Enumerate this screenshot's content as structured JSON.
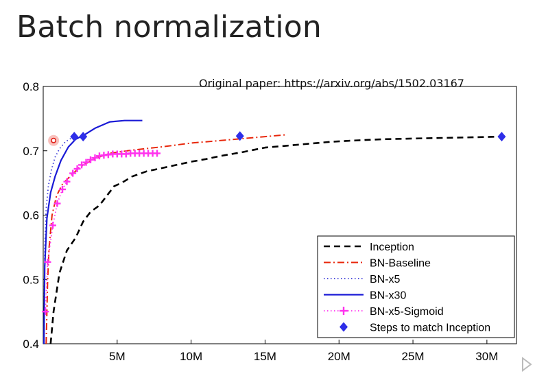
{
  "slide": {
    "title": "Batch normalization",
    "note": "Original paper: https://arxiv.org/abs/1502.03167"
  },
  "chart_data": {
    "type": "line",
    "title": "",
    "xlabel": "",
    "ylabel": "",
    "xlim": [
      0,
      32000000
    ],
    "ylim": [
      0.4,
      0.8
    ],
    "grid": false,
    "legend_position": "bottom-right",
    "x_ticks": [
      {
        "value": 5000000,
        "label": "5M"
      },
      {
        "value": 10000000,
        "label": "10M"
      },
      {
        "value": 15000000,
        "label": "15M"
      },
      {
        "value": 20000000,
        "label": "20M"
      },
      {
        "value": 25000000,
        "label": "25M"
      },
      {
        "value": 30000000,
        "label": "30M"
      }
    ],
    "y_ticks": [
      {
        "value": 0.4,
        "label": "0.4"
      },
      {
        "value": 0.5,
        "label": "0.5"
      },
      {
        "value": 0.6,
        "label": "0.6"
      },
      {
        "value": 0.7,
        "label": "0.7"
      },
      {
        "value": 0.8,
        "label": "0.8"
      }
    ],
    "series": [
      {
        "name": "Inception",
        "color": "#000000",
        "style": "dashed",
        "marker": "none",
        "points": [
          [
            500000,
            0.4
          ],
          [
            700000,
            0.45
          ],
          [
            1100000,
            0.51
          ],
          [
            1600000,
            0.545
          ],
          [
            2200000,
            0.565
          ],
          [
            2700000,
            0.59
          ],
          [
            3200000,
            0.605
          ],
          [
            3800000,
            0.615
          ],
          [
            4300000,
            0.63
          ],
          [
            4800000,
            0.645
          ],
          [
            5300000,
            0.65
          ],
          [
            6000000,
            0.66
          ],
          [
            7000000,
            0.668
          ],
          [
            8000000,
            0.673
          ],
          [
            9000000,
            0.678
          ],
          [
            10000000,
            0.683
          ],
          [
            11000000,
            0.687
          ],
          [
            12000000,
            0.692
          ],
          [
            13500000,
            0.698
          ],
          [
            15000000,
            0.705
          ],
          [
            16500000,
            0.708
          ],
          [
            18000000,
            0.711
          ],
          [
            19500000,
            0.714
          ],
          [
            21000000,
            0.716
          ],
          [
            23000000,
            0.718
          ],
          [
            25000000,
            0.719
          ],
          [
            27000000,
            0.72
          ],
          [
            29000000,
            0.721
          ],
          [
            31000000,
            0.722
          ]
        ]
      },
      {
        "name": "BN-Baseline",
        "color": "#e8260a",
        "style": "dashdot",
        "marker": "none",
        "points": [
          [
            200000,
            0.4
          ],
          [
            300000,
            0.5
          ],
          [
            400000,
            0.55
          ],
          [
            600000,
            0.6
          ],
          [
            900000,
            0.63
          ],
          [
            1300000,
            0.648
          ],
          [
            1800000,
            0.66
          ],
          [
            2500000,
            0.675
          ],
          [
            3500000,
            0.688
          ],
          [
            4500000,
            0.696
          ],
          [
            6000000,
            0.701
          ],
          [
            8000000,
            0.706
          ],
          [
            10000000,
            0.712
          ],
          [
            12000000,
            0.716
          ],
          [
            14000000,
            0.72
          ],
          [
            16500000,
            0.725
          ]
        ]
      },
      {
        "name": "BN-x5",
        "color": "#3a3ad8",
        "style": "dotted",
        "marker": "none",
        "points": [
          [
            60000,
            0.43
          ],
          [
            100000,
            0.55
          ],
          [
            200000,
            0.61
          ],
          [
            350000,
            0.645
          ],
          [
            550000,
            0.67
          ],
          [
            800000,
            0.69
          ],
          [
            1100000,
            0.703
          ],
          [
            1500000,
            0.714
          ],
          [
            2000000,
            0.721
          ]
        ]
      },
      {
        "name": "BN-x30",
        "color": "#1a1ad6",
        "style": "solid",
        "marker": "none",
        "points": [
          [
            50000,
            0.4
          ],
          [
            100000,
            0.52
          ],
          [
            250000,
            0.595
          ],
          [
            500000,
            0.635
          ],
          [
            800000,
            0.66
          ],
          [
            1200000,
            0.685
          ],
          [
            1700000,
            0.706
          ],
          [
            2200000,
            0.718
          ],
          [
            2800000,
            0.725
          ],
          [
            3500000,
            0.735
          ],
          [
            4500000,
            0.745
          ],
          [
            5500000,
            0.747
          ],
          [
            6700000,
            0.747
          ]
        ]
      },
      {
        "name": "BN-x5-Sigmoid",
        "color": "#ff33ee",
        "style": "dotted",
        "marker": "plus",
        "points": [
          [
            150000,
            0.45
          ],
          [
            300000,
            0.527
          ],
          [
            650000,
            0.584
          ],
          [
            950000,
            0.618
          ],
          [
            1300000,
            0.64
          ],
          [
            1600000,
            0.652
          ],
          [
            2000000,
            0.665
          ],
          [
            2300000,
            0.672
          ],
          [
            2600000,
            0.678
          ],
          [
            2900000,
            0.682
          ],
          [
            3200000,
            0.686
          ],
          [
            3500000,
            0.689
          ],
          [
            3800000,
            0.692
          ],
          [
            4100000,
            0.693
          ],
          [
            4400000,
            0.694
          ],
          [
            4700000,
            0.695
          ],
          [
            5000000,
            0.695
          ],
          [
            5300000,
            0.695
          ],
          [
            5600000,
            0.695
          ],
          [
            5900000,
            0.696
          ],
          [
            6200000,
            0.696
          ],
          [
            6500000,
            0.696
          ],
          [
            6800000,
            0.696
          ],
          [
            7100000,
            0.696
          ],
          [
            7400000,
            0.696
          ],
          [
            7700000,
            0.696
          ]
        ]
      }
    ],
    "match_steps": {
      "name": "Steps to match Inception",
      "color": "#2e2ee8",
      "marker": "diamond",
      "points": [
        [
          2100000,
          0.722
        ],
        [
          2700000,
          0.722
        ],
        [
          13300000,
          0.723
        ],
        [
          31000000,
          0.722
        ]
      ]
    },
    "highlight_point": {
      "x": 700000,
      "y": 0.716
    }
  }
}
